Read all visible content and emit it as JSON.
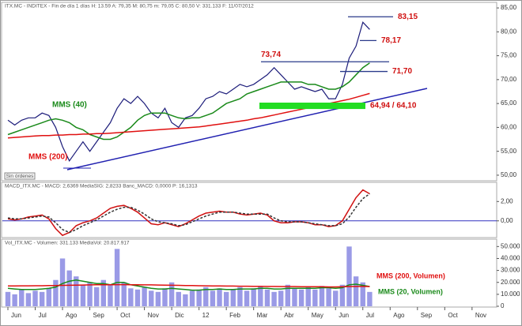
{
  "chart_data": [
    {
      "type": "line",
      "title": "ITX.MC - INDITEX - Fin de día 1 días  H: 13.59  A: 79,35  M: 80,75  m: 79,05  C: 80,50  V: 331.133  F: 11/07/2012",
      "button_label": "Sin órdenes",
      "ylim": [
        49,
        86
      ],
      "yticks": [
        {
          "value": 50,
          "label": "50,00"
        },
        {
          "value": 55,
          "label": "55,00"
        },
        {
          "value": 60,
          "label": "60,00"
        },
        {
          "value": 65,
          "label": "65,00"
        },
        {
          "value": 70,
          "label": "70,00"
        },
        {
          "value": 75,
          "label": "75,00"
        },
        {
          "value": 80,
          "label": "80,00"
        },
        {
          "value": 85,
          "label": "85,00"
        }
      ],
      "series": [
        {
          "color": "#1c1c7a",
          "values": [
            61.5,
            60.5,
            61.5,
            62,
            62,
            63,
            62.5,
            60,
            56,
            53,
            55,
            57,
            55,
            57,
            59,
            61,
            64,
            66,
            65,
            66.5,
            65,
            63,
            62,
            64,
            61,
            60,
            62,
            62.5,
            64,
            66,
            66.5,
            67.5,
            67,
            68,
            69,
            68.5,
            69,
            70,
            71,
            72.5,
            71,
            69.5,
            68,
            68.5,
            68,
            67.5,
            68,
            66,
            66,
            69,
            74.5,
            77,
            82,
            80.5,
            null,
            null,
            null,
            null,
            null,
            null,
            null,
            null,
            null,
            null,
            null,
            null,
            null,
            null,
            null,
            null,
            null,
            null
          ]
        },
        {
          "name": "MMS (40)",
          "color": "#1a8a1a",
          "values": [
            58.5,
            59,
            59.5,
            60,
            60.5,
            61,
            61.5,
            61.8,
            61.5,
            61,
            60,
            59.5,
            58.5,
            58,
            57.5,
            57.5,
            58,
            59,
            60,
            61.5,
            62.5,
            63,
            63,
            63,
            62.5,
            62,
            61.8,
            62,
            62,
            62.5,
            63,
            64,
            65,
            65.5,
            66,
            67,
            67.5,
            68,
            68.5,
            69,
            69.5,
            69.5,
            69.5,
            69.5,
            69,
            69,
            68.5,
            68,
            68,
            68.5,
            69.5,
            71,
            72.5,
            73.5,
            null,
            null,
            null,
            null,
            null,
            null,
            null,
            null,
            null,
            null,
            null,
            null,
            null,
            null,
            null,
            null,
            null,
            null
          ]
        },
        {
          "name": "MMS (200)",
          "color": "#e01010",
          "values": [
            57.8,
            57.9,
            58,
            58.1,
            58.2,
            58.3,
            58.3,
            58.4,
            58.4,
            58.5,
            58.5,
            58.6,
            58.6,
            58.7,
            58.7,
            58.8,
            58.9,
            59,
            59.1,
            59.2,
            59.3,
            59.4,
            59.5,
            59.6,
            59.7,
            59.8,
            59.9,
            60,
            60.1,
            60.3,
            60.5,
            60.7,
            60.9,
            61.1,
            61.3,
            61.5,
            61.8,
            62,
            62.3,
            62.6,
            62.9,
            63.2,
            63.5,
            63.8,
            64.1,
            64.4,
            64.7,
            65,
            65.3,
            65.6,
            65.9,
            66.3,
            66.7,
            67.1,
            null,
            null,
            null,
            null,
            null,
            null,
            null,
            null,
            null,
            null,
            null,
            null,
            null,
            null,
            null,
            null,
            null,
            null
          ]
        }
      ],
      "annotations": [
        {
          "text": "83,15",
          "value": 83.15
        },
        {
          "text": "78,17",
          "value": 78.17
        },
        {
          "text": "73,74",
          "value": 73.74
        },
        {
          "text": "71,70",
          "value": 71.7
        },
        {
          "text": "64,94 / 64,10",
          "values": [
            64.94,
            64.1
          ]
        }
      ]
    },
    {
      "type": "line",
      "title": "MACD_ITX.MC - MACD: 2,6369  MediaSIG: 2,8233  Banc_MACD: 0,0000  P: 16,1313",
      "ylim": [
        -1.65,
        3.9
      ],
      "yticks": [
        {
          "value": 0,
          "label": "0,00"
        },
        {
          "value": 2,
          "label": "2,00"
        }
      ],
      "series": [
        {
          "color": "#d01010",
          "values": [
            0.2,
            0.1,
            0.2,
            0.4,
            0.5,
            0.6,
            0.2,
            -0.8,
            -1.5,
            -1.2,
            -0.5,
            -0.2,
            0,
            0.3,
            0.8,
            1.3,
            1.5,
            1.6,
            1.3,
            0.9,
            0.3,
            -0.3,
            -0.4,
            -0.2,
            -0.4,
            -0.6,
            -0.3,
            0.1,
            0.5,
            0.8,
            0.9,
            1.0,
            0.9,
            0.9,
            0.7,
            0.6,
            0.7,
            0.8,
            0.6,
            0,
            -0.2,
            -0.2,
            -0.1,
            -0.1,
            -0.2,
            -0.4,
            -0.4,
            -0.6,
            -0.5,
            0,
            1.2,
            2.4,
            3.2,
            2.8,
            null,
            null,
            null,
            null,
            null,
            null,
            null,
            null,
            null,
            null,
            null,
            null,
            null,
            null,
            null,
            null,
            null,
            null
          ]
        },
        {
          "color": "#333333",
          "dashed": true,
          "values": [
            0.3,
            0.2,
            0.2,
            0.3,
            0.4,
            0.5,
            0.4,
            -0.2,
            -0.9,
            -1.2,
            -0.9,
            -0.5,
            -0.2,
            0.1,
            0.5,
            0.9,
            1.2,
            1.4,
            1.4,
            1.1,
            0.7,
            0.2,
            -0.1,
            -0.2,
            -0.3,
            -0.5,
            -0.4,
            -0.1,
            0.2,
            0.5,
            0.7,
            0.9,
            0.9,
            0.9,
            0.8,
            0.7,
            0.7,
            0.7,
            0.7,
            0.3,
            0,
            -0.1,
            -0.1,
            -0.1,
            -0.2,
            -0.3,
            -0.4,
            -0.5,
            -0.5,
            -0.3,
            0.4,
            1.4,
            2.3,
            2.8,
            null,
            null,
            null,
            null,
            null,
            null,
            null,
            null,
            null,
            null,
            null,
            null,
            null,
            null,
            null,
            null,
            null,
            null
          ]
        }
      ]
    },
    {
      "type": "bar",
      "title": "Vol_ITX.MC - Volumen: 331.133  MediaVol: 20.817.917",
      "categories": [
        "Jun",
        null,
        null,
        null,
        "Jul",
        null,
        null,
        null,
        "Ago",
        null,
        null,
        null,
        "Sep",
        null,
        null,
        null,
        "Oct",
        null,
        null,
        null,
        "Nov",
        null,
        null,
        null,
        "Dic",
        null,
        null,
        null,
        "12",
        null,
        null,
        null,
        "Feb",
        null,
        null,
        null,
        "Mar",
        null,
        null,
        null,
        "Abr",
        null,
        null,
        null,
        "May",
        null,
        null,
        null,
        "Jun",
        null,
        null,
        null,
        "Jul",
        null,
        null,
        null,
        "Ago",
        null,
        null,
        null,
        "Sep",
        null,
        null,
        null,
        "Oct",
        null,
        null,
        null,
        "Nov",
        null,
        null,
        null
      ],
      "ylim": [
        0,
        55500
      ],
      "yticks": [
        0,
        {
          "value": 10000,
          "label": "10.000"
        },
        {
          "value": 20000,
          "label": "20.000"
        },
        {
          "value": 30000,
          "label": "30.000"
        },
        {
          "value": 40000,
          "label": "40.000"
        },
        {
          "value": 50000,
          "label": "50.000"
        }
      ],
      "series": [
        {
          "type": "bar",
          "color": "#9a9ae6",
          "values": [
            12000,
            10000,
            14000,
            11000,
            13000,
            12000,
            15000,
            22000,
            40000,
            30000,
            25000,
            18000,
            20000,
            16000,
            22000,
            18000,
            48000,
            20000,
            15000,
            14000,
            16000,
            13000,
            12000,
            15000,
            20000,
            12000,
            10000,
            13000,
            14000,
            16000,
            13000,
            15000,
            12000,
            14000,
            16000,
            13000,
            15000,
            17000,
            14000,
            12000,
            13000,
            18000,
            15000,
            14000,
            16000,
            14000,
            17000,
            15000,
            13000,
            18000,
            50000,
            25000,
            20000,
            12000,
            null,
            null,
            null,
            null,
            null,
            null,
            null,
            null,
            null,
            null,
            null,
            null,
            null,
            null,
            null,
            null,
            null,
            null
          ]
        },
        {
          "type": "line",
          "name": "MMS (20, Volumen)",
          "color": "#1a8a1a",
          "values": [
            15000,
            14500,
            14000,
            14000,
            14000,
            14500,
            15000,
            16000,
            19000,
            21000,
            22000,
            21000,
            20000,
            19000,
            19000,
            18000,
            20000,
            20000,
            18000,
            17000,
            16000,
            15000,
            14500,
            14500,
            15000,
            14500,
            14000,
            13500,
            13500,
            14000,
            14000,
            14500,
            14000,
            14000,
            14500,
            14500,
            14500,
            15000,
            15000,
            14500,
            14500,
            15000,
            15000,
            15000,
            15000,
            15000,
            15500,
            15500,
            15000,
            15500,
            18000,
            18500,
            17500,
            16500,
            null,
            null,
            null,
            null,
            null,
            null,
            null,
            null,
            null,
            null,
            null,
            null,
            null,
            null,
            null,
            null,
            null,
            null
          ]
        },
        {
          "type": "line",
          "name": "MMS (200, Volumen)",
          "color": "#e01010",
          "values": [
            17000,
            17000,
            17100,
            17100,
            17200,
            17200,
            17300,
            17400,
            17500,
            17600,
            17700,
            17800,
            17900,
            18000,
            18000,
            18000,
            18100,
            18100,
            18000,
            18000,
            17900,
            17900,
            17800,
            17700,
            17600,
            17500,
            17400,
            17300,
            17200,
            17100,
            17000,
            17000,
            16900,
            16900,
            16800,
            16800,
            16700,
            16700,
            16600,
            16600,
            16500,
            16500,
            16500,
            16400,
            16400,
            16300,
            16300,
            16200,
            16200,
            16300,
            16500,
            16600,
            16600,
            16500,
            null,
            null,
            null,
            null,
            null,
            null,
            null,
            null,
            null,
            null,
            null,
            null,
            null,
            null,
            null,
            null,
            null,
            null
          ]
        }
      ]
    }
  ]
}
